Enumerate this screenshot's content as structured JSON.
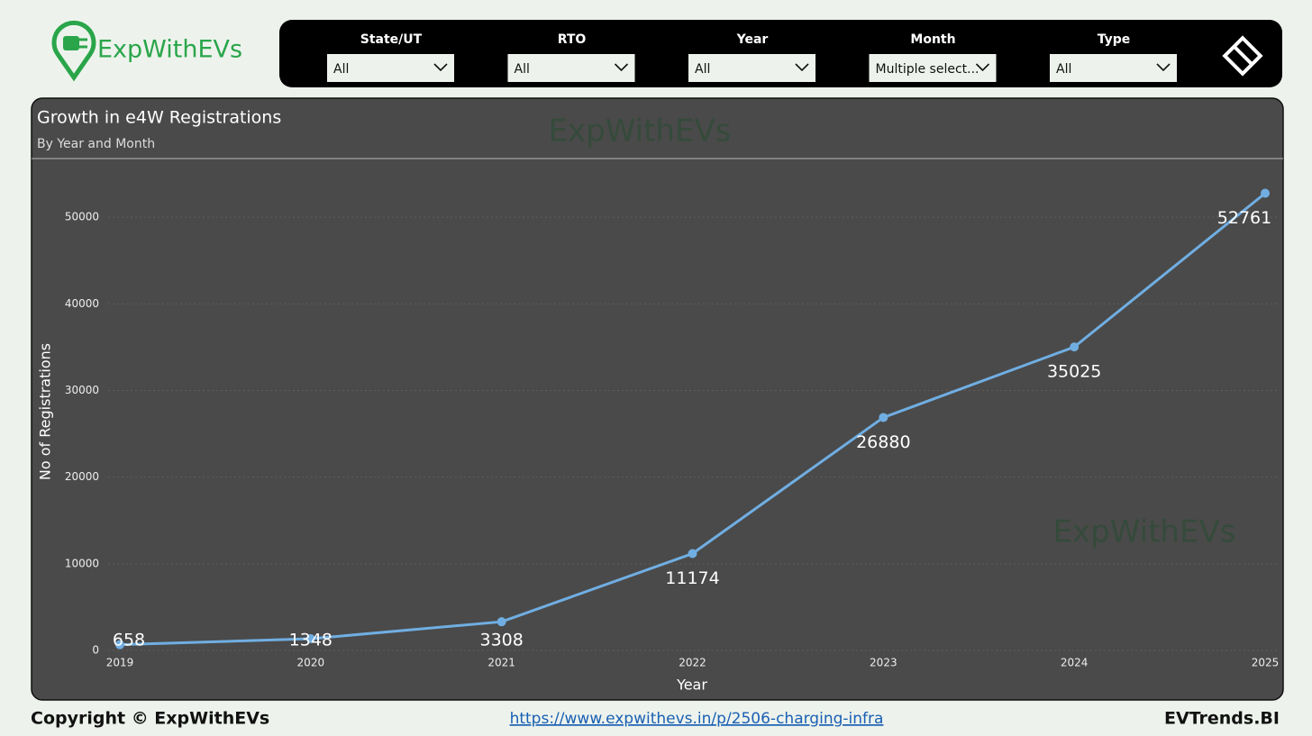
{
  "header": {
    "logo": "ExpWithEVs"
  },
  "filters": [
    {
      "label": "State/UT",
      "value": "All"
    },
    {
      "label": "RTO",
      "value": "All"
    },
    {
      "label": "Year",
      "value": "All"
    },
    {
      "label": "Month",
      "value": "Multiple select..."
    },
    {
      "label": "Type",
      "value": "All"
    }
  ],
  "chart_data": {
    "type": "line",
    "title": "Growth in e4W Registrations",
    "subtitle": "By Year and Month",
    "x_label": "Year",
    "y_label": "No of Registrations",
    "categories": [
      "2019",
      "2020",
      "2021",
      "2022",
      "2023",
      "2024",
      "2025"
    ],
    "series": [
      {
        "name": "No of Registrations",
        "color": "#70aee2",
        "values": [
          658,
          1348,
          3308,
          11174,
          26880,
          35025,
          52761
        ]
      }
    ],
    "ylim": [
      0,
      55000
    ],
    "yticks": [
      0,
      10000,
      20000,
      30000,
      40000,
      50000
    ],
    "grid": true,
    "data_labels": true
  },
  "footer": {
    "copyright": "Copyright © ExpWithEVs",
    "link": "https://www.expwithevs.in/p/2506-charging-infra",
    "brand": "EVTrends.BI"
  }
}
